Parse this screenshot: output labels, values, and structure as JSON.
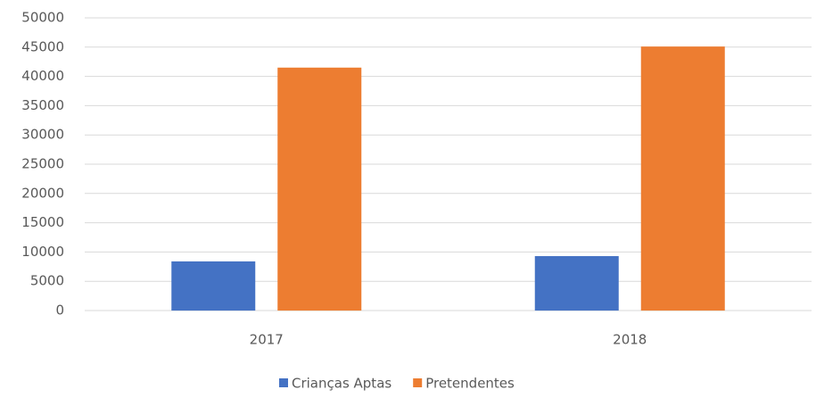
{
  "chart_data": {
    "type": "bar",
    "categories": [
      "2017",
      "2018"
    ],
    "series": [
      {
        "name": "Crianças Aptas",
        "color": "#4472c4",
        "values": [
          8400,
          9300
        ]
      },
      {
        "name": "Pretendentes",
        "color": "#ed7d31",
        "values": [
          41500,
          45100
        ]
      }
    ],
    "ylim": [
      0,
      50000
    ],
    "yticks": [
      0,
      5000,
      10000,
      15000,
      20000,
      25000,
      30000,
      35000,
      40000,
      45000,
      50000
    ],
    "grid": true,
    "legend": "bottom"
  }
}
